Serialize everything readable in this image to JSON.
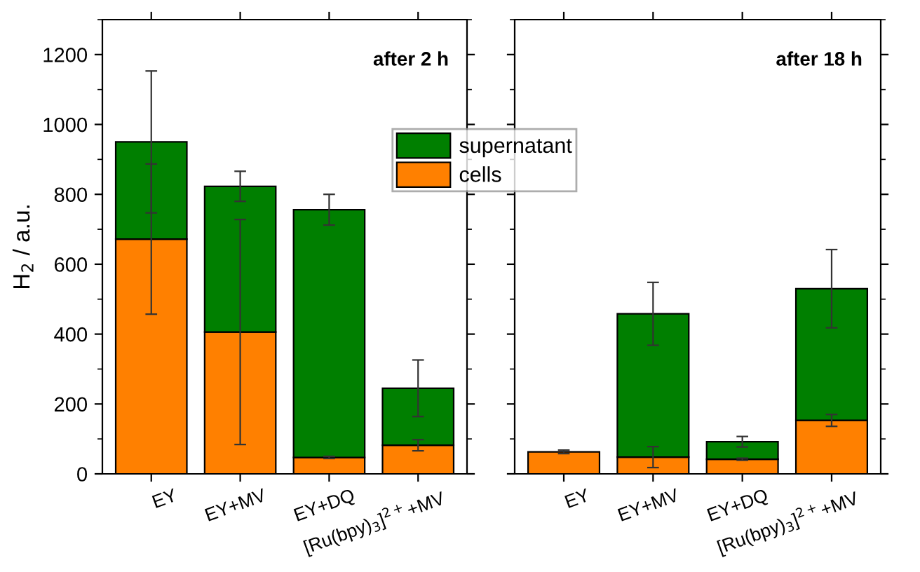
{
  "chart_data": [
    {
      "type": "bar",
      "stacked": true,
      "ylabel": "H$_{2}$ / a.u.",
      "annotations": [
        "after 2 h"
      ],
      "categories": [
        "EY",
        "EY+MV",
        "EY+DQ",
        "[Ru(bpy)$_{3}$]$^{2+}$+MV"
      ],
      "ylim": [
        0,
        1300
      ],
      "yticks": [
        0,
        200,
        400,
        600,
        800,
        1000,
        1200
      ],
      "legend": "right",
      "series": [
        {
          "name": "cells",
          "color": "#ff8000",
          "values": [
            672,
            406,
            47,
            82
          ],
          "errors": [
            215,
            322,
            3,
            16
          ]
        },
        {
          "name": "supernatant",
          "color": "#007f00",
          "values": [
            278,
            417,
            709,
            163
          ],
          "errors": [
            203,
            43,
            44,
            81
          ]
        }
      ]
    },
    {
      "type": "bar",
      "stacked": true,
      "annotations": [
        "after 18 h"
      ],
      "categories": [
        "EY",
        "EY+MV",
        "EY+DQ",
        "[Ru(bpy)$_{3}$]$^{2+}$+MV"
      ],
      "ylim": [
        0,
        1300
      ],
      "tick_labels": "x",
      "series": [
        {
          "color": "#ff8000",
          "values": [
            63,
            48,
            42,
            153
          ],
          "errors": [
            5,
            30,
            3,
            17
          ]
        },
        {
          "color": "#007f00",
          "values": [
            null,
            410,
            50,
            377
          ],
          "errors": [
            null,
            90,
            15,
            112
          ]
        }
      ]
    }
  ]
}
